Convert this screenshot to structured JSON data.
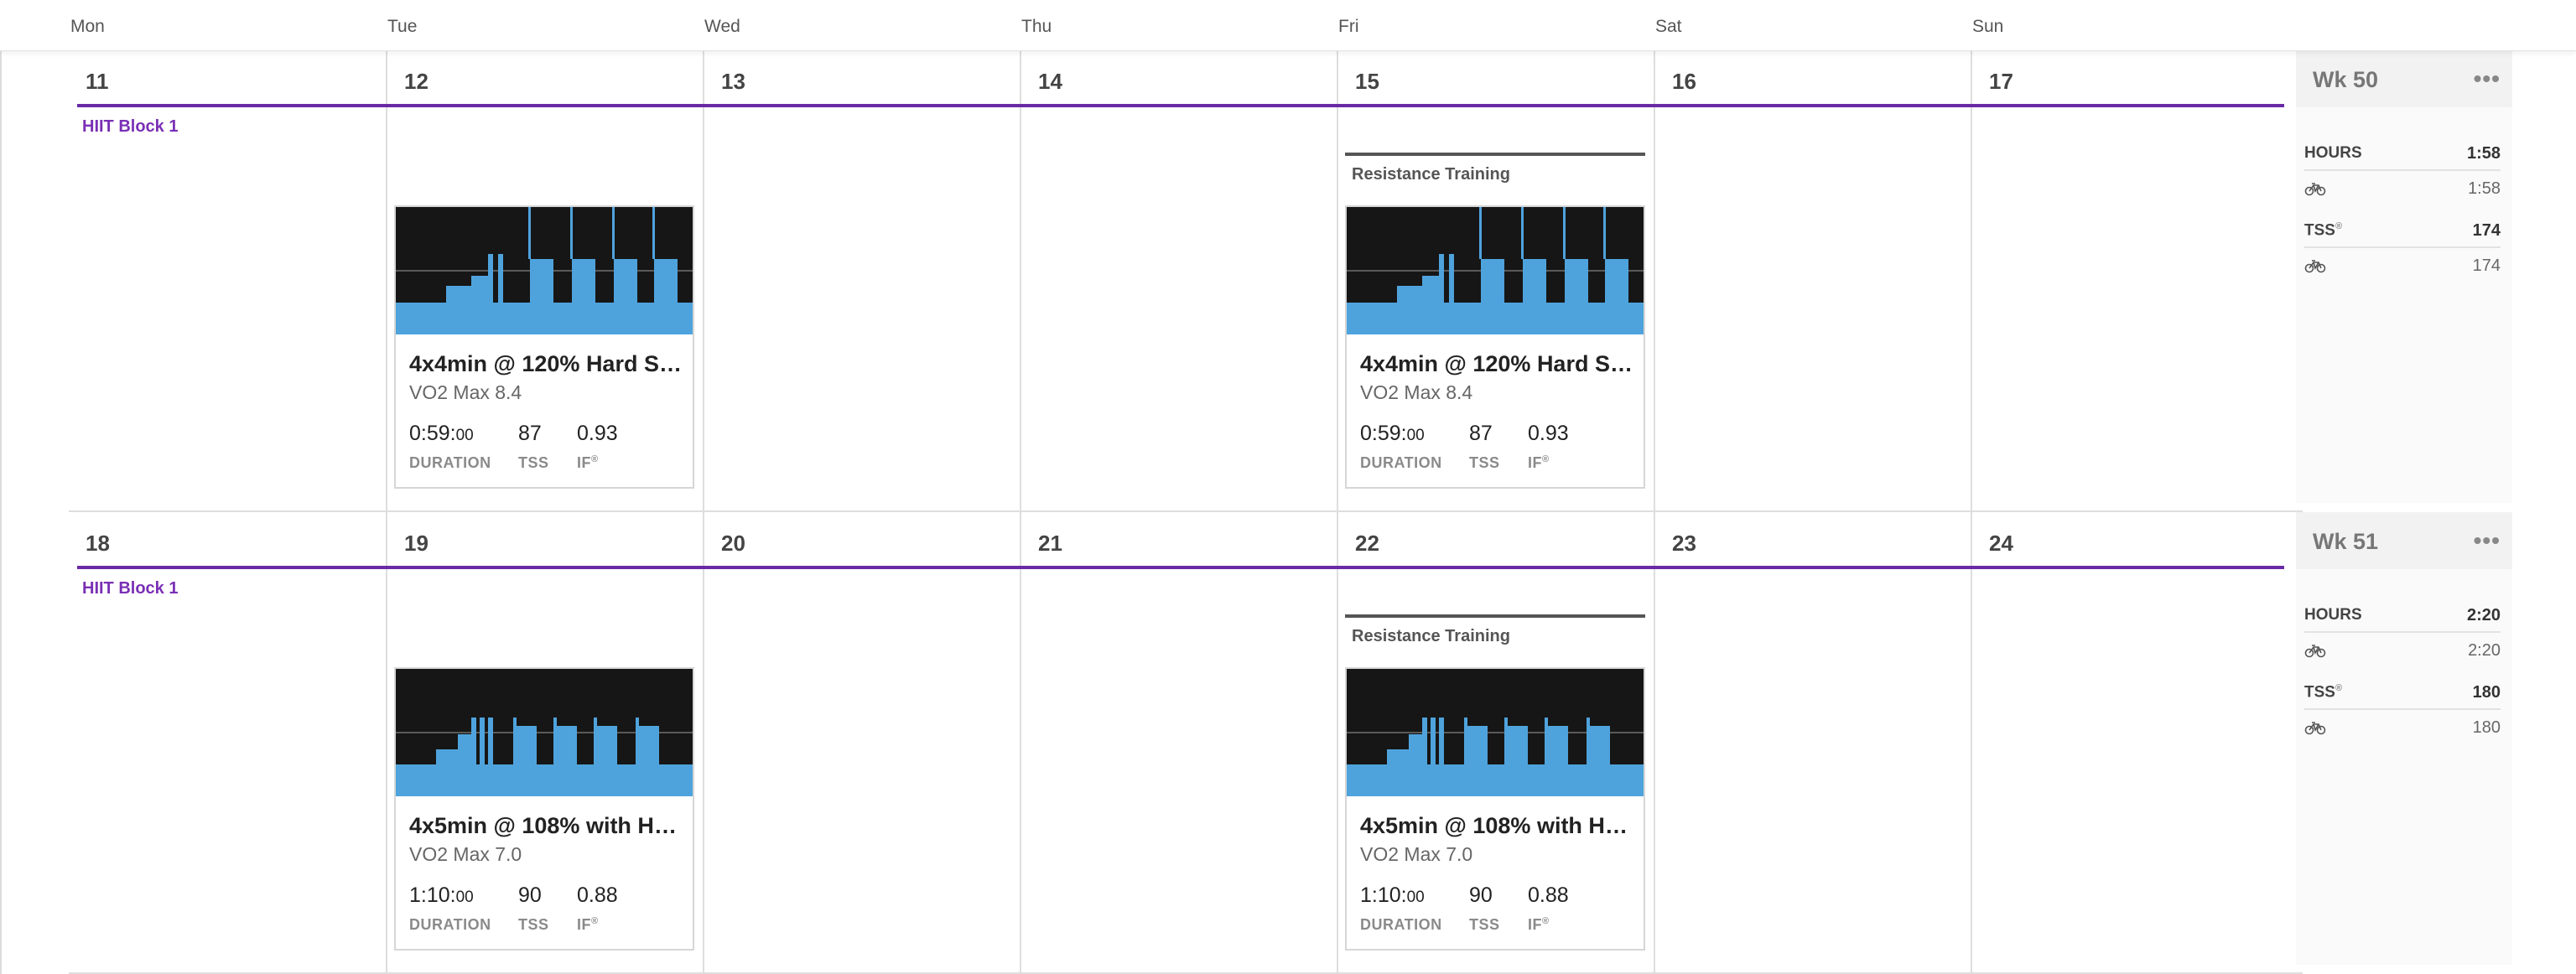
{
  "days_of_week": [
    "Mon",
    "Tue",
    "Wed",
    "Thu",
    "Fri",
    "Sat",
    "Sun"
  ],
  "weeks": [
    {
      "dates": [
        "11",
        "12",
        "13",
        "14",
        "15",
        "16",
        "17"
      ],
      "block_label": "HIIT Block 1",
      "friday_event": "Resistance Training",
      "workouts": [
        {
          "title": "4x4min @ 120% Hard St...",
          "subtitle": "VO2 Max 8.4",
          "duration_main": "0:59:",
          "duration_sec": "00",
          "tss": "87",
          "if": "0.93"
        },
        {
          "title": "4x4min @ 120% Hard St...",
          "subtitle": "VO2 Max 8.4",
          "duration_main": "0:59:",
          "duration_sec": "00",
          "tss": "87",
          "if": "0.93"
        }
      ],
      "summary": {
        "title": "Wk 50",
        "more": "•••",
        "hours_label": "HOURS",
        "hours": "1:58",
        "hours_bike": "1:58",
        "tss_label": "TSS",
        "tss_mark": "®",
        "tss": "174",
        "tss_bike": "174"
      }
    },
    {
      "dates": [
        "18",
        "19",
        "20",
        "21",
        "22",
        "23",
        "24"
      ],
      "block_label": "HIIT Block 1",
      "friday_event": "Resistance Training",
      "workouts": [
        {
          "title": "4x5min @ 108% with Ha...",
          "subtitle": "VO2 Max 7.0",
          "duration_main": "1:10:",
          "duration_sec": "00",
          "tss": "90",
          "if": "0.88"
        },
        {
          "title": "4x5min @ 108% with Ha...",
          "subtitle": "VO2 Max 7.0",
          "duration_main": "1:10:",
          "duration_sec": "00",
          "tss": "90",
          "if": "0.88"
        }
      ],
      "summary": {
        "title": "Wk 51",
        "more": "•••",
        "hours_label": "HOURS",
        "hours": "2:20",
        "hours_bike": "2:20",
        "tss_label": "TSS",
        "tss_mark": "®",
        "tss": "180",
        "tss_bike": "180"
      }
    }
  ],
  "stat_labels": {
    "duration": "DURATION",
    "tss": "TSS",
    "if": "IF",
    "if_mark": "®"
  },
  "colors": {
    "accent_purple": "#6a2aa6",
    "chart_bg": "#161616",
    "chart_blue": "#4fa3dc"
  },
  "icons": {
    "sport": "bike-icon",
    "more": "more-icon"
  }
}
